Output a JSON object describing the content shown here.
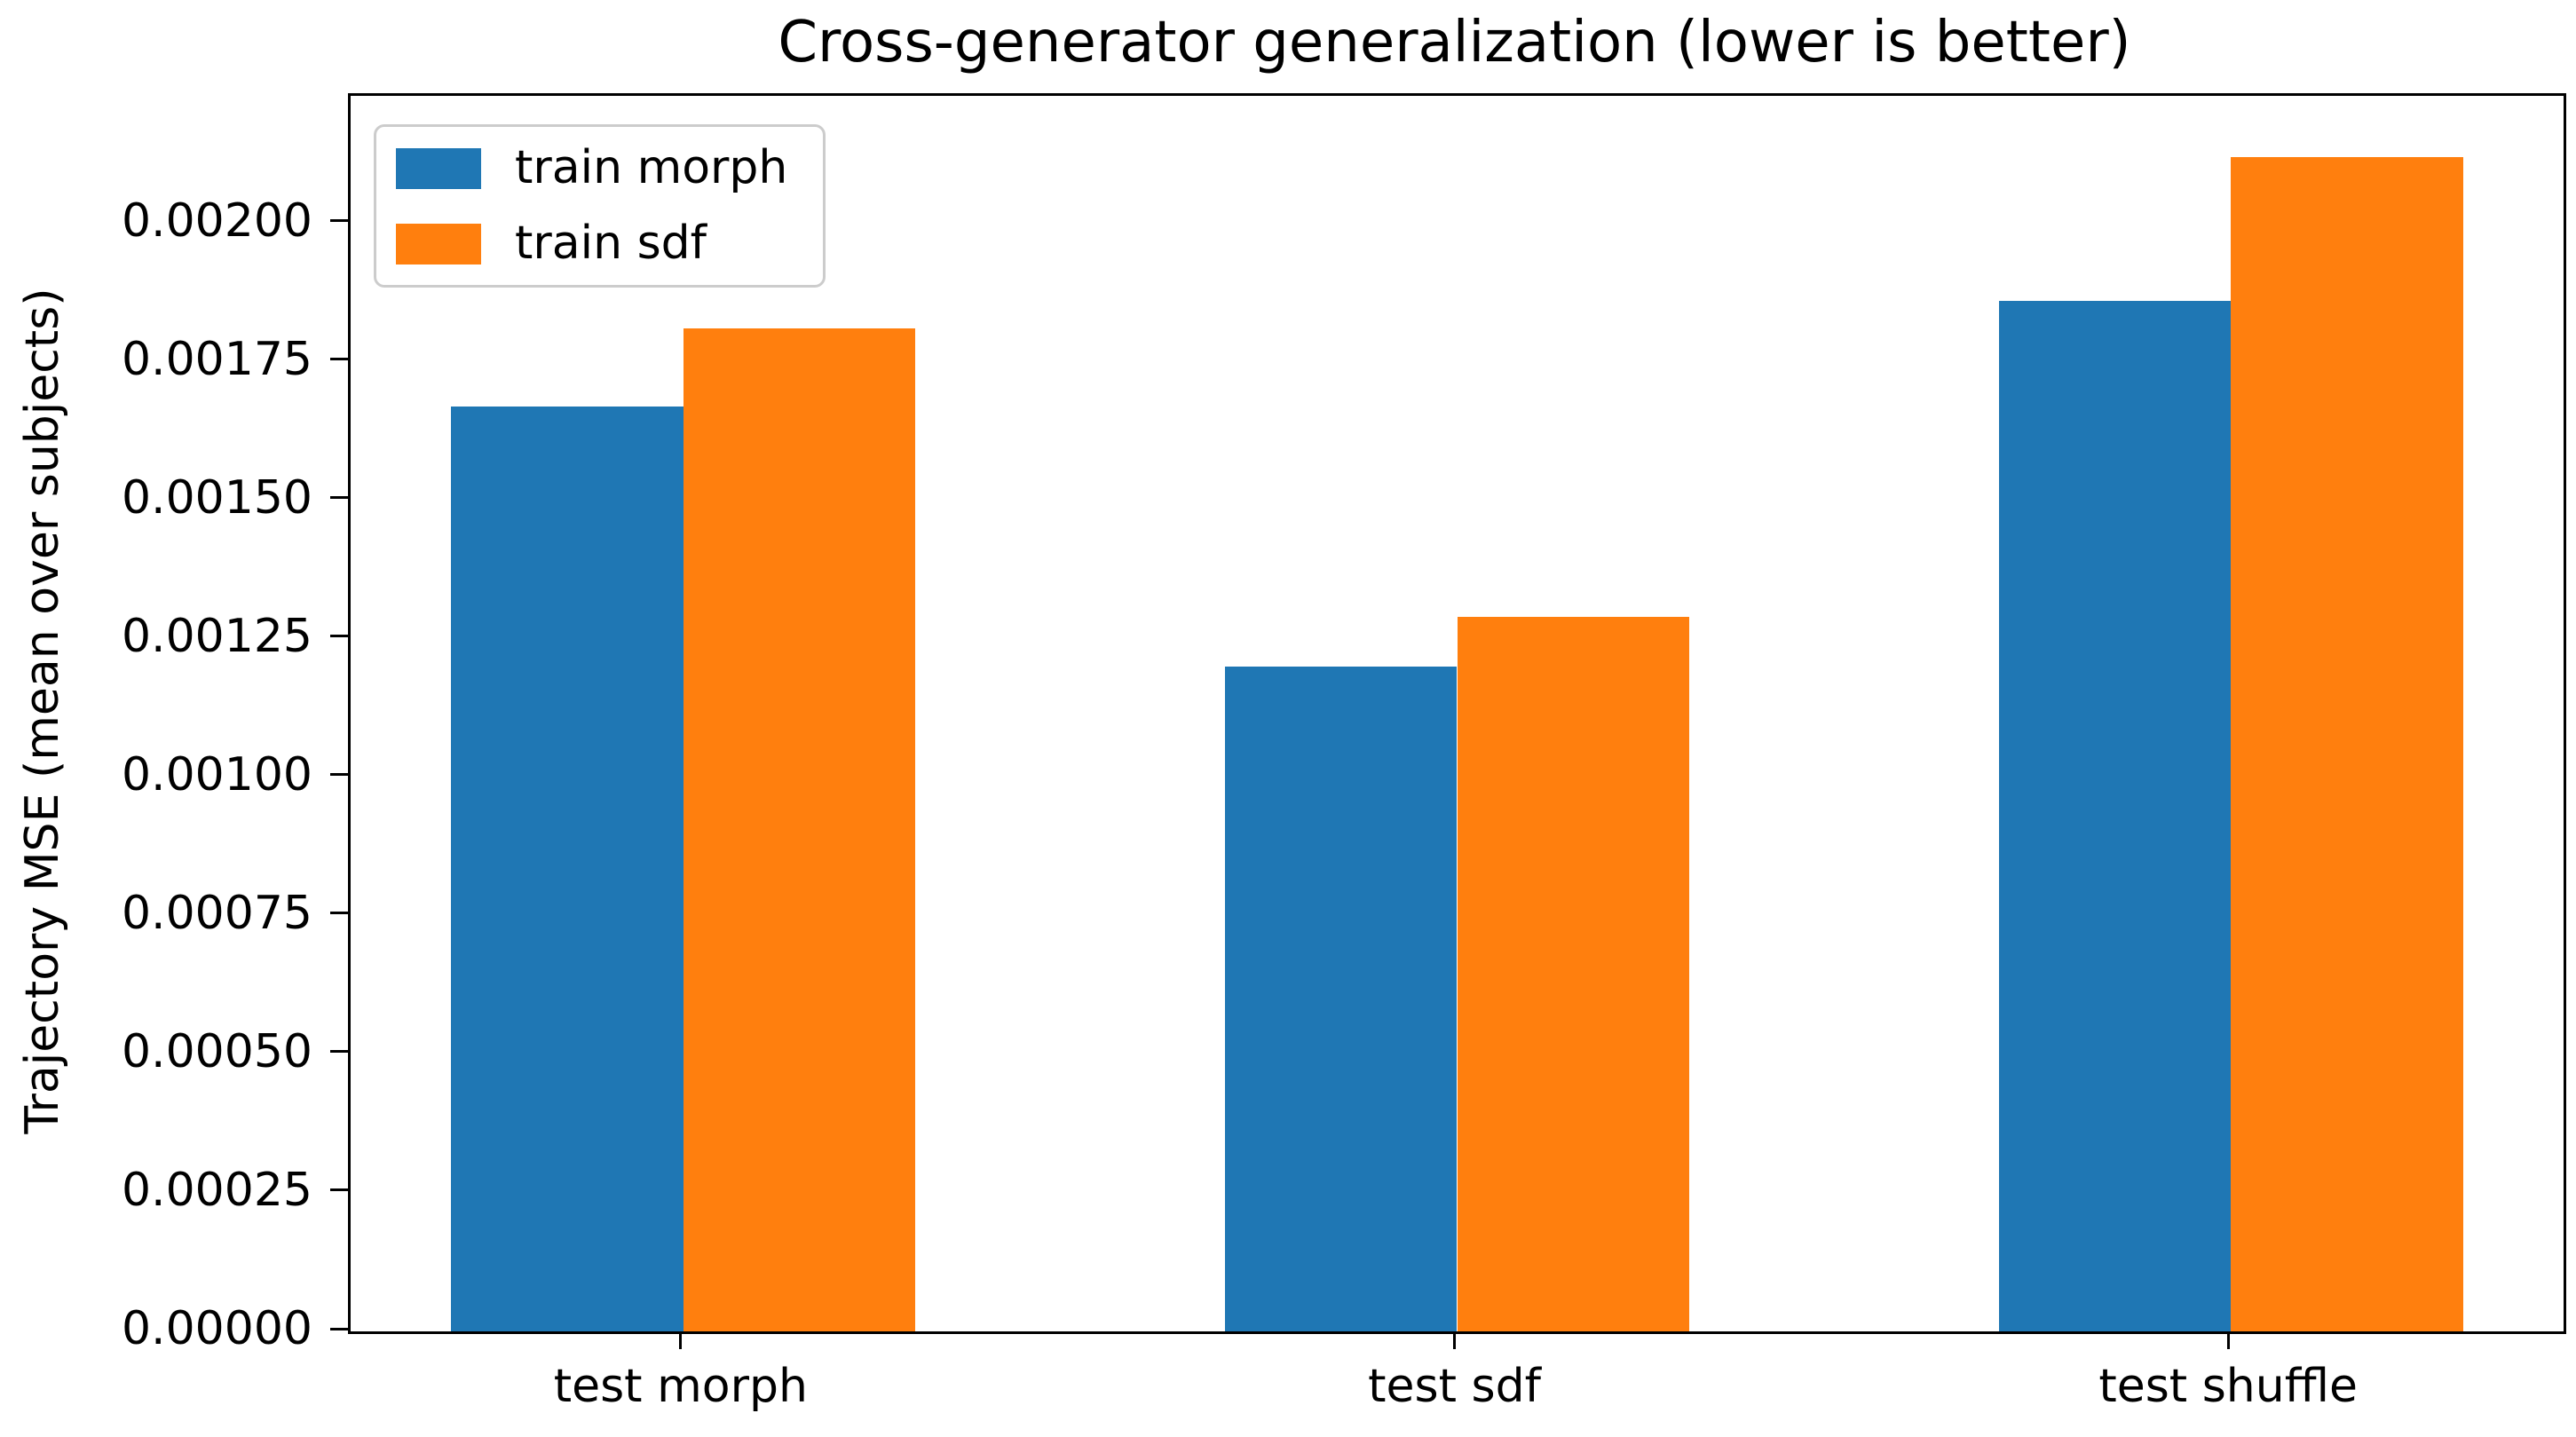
{
  "chart_data": {
    "type": "bar",
    "title": "Cross-generator generalization (lower is better)",
    "ylabel": "Trajectory MSE (mean over subjects)",
    "xlabel": "",
    "categories": [
      "test morph",
      "test sdf",
      "test shuffle"
    ],
    "x_positions": [
      0,
      1,
      2
    ],
    "series": [
      {
        "name": "train morph",
        "color": "#1f77b4",
        "values": [
          0.00167,
          0.0012,
          0.00186
        ]
      },
      {
        "name": "train sdf",
        "color": "#ff7f0e",
        "values": [
          0.00181,
          0.00129,
          0.00212
        ]
      }
    ],
    "bar_width_units": 0.3,
    "xlim": [
      -0.43,
      2.43
    ],
    "ylim": [
      0,
      0.00223
    ],
    "yticks": {
      "values": [
        0.0,
        0.00025,
        0.0005,
        0.00075,
        0.001,
        0.00125,
        0.0015,
        0.00175,
        0.002
      ],
      "labels": [
        "0.00000",
        "0.00025",
        "0.00050",
        "0.00075",
        "0.00100",
        "0.00125",
        "0.00150",
        "0.00175",
        "0.00200"
      ]
    },
    "grid": false,
    "legend": {
      "position": "upper left"
    },
    "background_color": "#ffffff",
    "spine_color": "#000000",
    "text_color": "#000000"
  }
}
